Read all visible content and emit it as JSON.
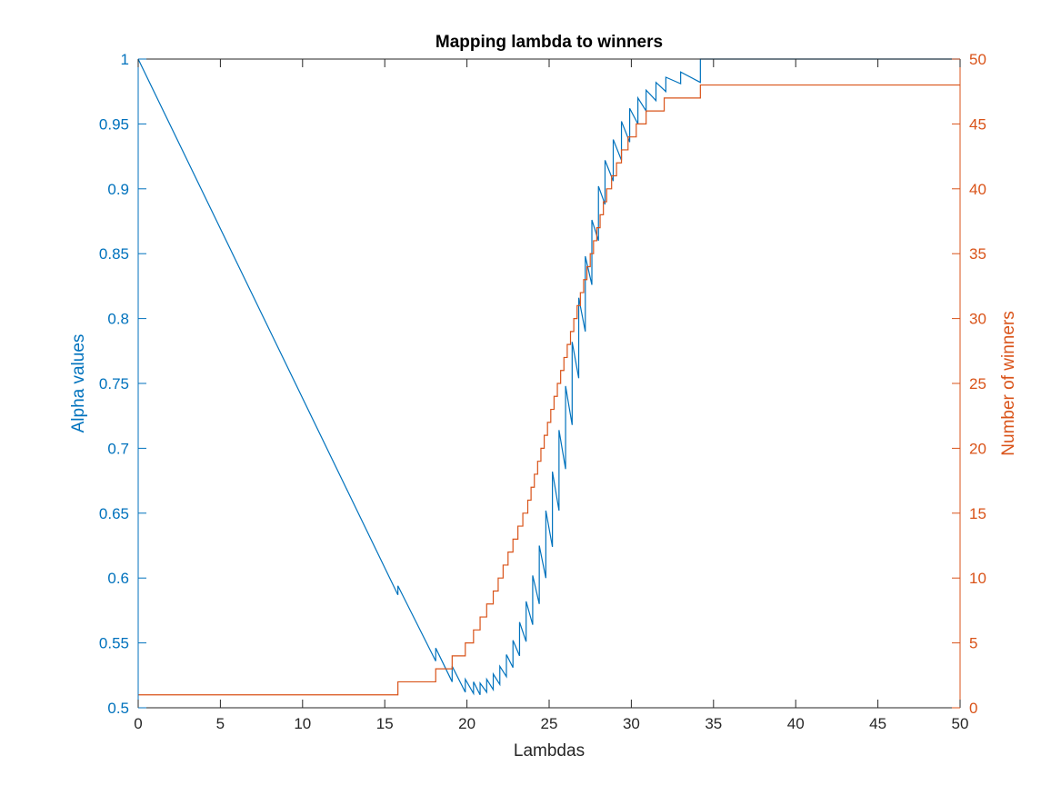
{
  "chart_data": {
    "type": "line",
    "title": "Mapping lambda to winners",
    "xlabel": "Lambdas",
    "ylabel_left": "Alpha values",
    "ylabel_right": "Number of winners",
    "xlim": [
      0,
      50
    ],
    "ylim_left": [
      0.5,
      1
    ],
    "ylim_right": [
      0,
      50
    ],
    "x_ticks": [
      "0",
      "5",
      "10",
      "15",
      "20",
      "25",
      "30",
      "35",
      "40",
      "45",
      "50"
    ],
    "y_left_ticks": [
      "0.5",
      "0.55",
      "0.6",
      "0.65",
      "0.7",
      "0.75",
      "0.8",
      "0.85",
      "0.9",
      "0.95",
      "1"
    ],
    "y_right_ticks": [
      "0",
      "5",
      "10",
      "15",
      "20",
      "25",
      "30",
      "35",
      "40",
      "45",
      "50"
    ],
    "grid": false,
    "colors": {
      "left": "#0072BD",
      "right": "#D95319",
      "axis": "#262626",
      "title": "#000000"
    },
    "series": [
      {
        "name": "Alpha values",
        "axis": "left",
        "color": "#0072BD",
        "x": [
          0,
          15.8,
          15.8,
          18.1,
          18.1,
          19.1,
          19.1,
          19.9,
          19.9,
          20.4,
          20.4,
          20.8,
          20.8,
          21.2,
          21.2,
          21.6,
          21.6,
          22.0,
          22.0,
          22.4,
          22.4,
          22.8,
          22.8,
          23.2,
          23.2,
          23.6,
          23.6,
          24.0,
          24.0,
          24.4,
          24.4,
          24.8,
          24.8,
          25.2,
          25.2,
          25.6,
          25.6,
          26.0,
          26.0,
          26.4,
          26.4,
          26.8,
          26.8,
          27.2,
          27.2,
          27.6,
          27.6,
          28.0,
          28.0,
          28.4,
          28.4,
          28.9,
          28.9,
          29.4,
          29.4,
          29.9,
          29.9,
          30.4,
          30.4,
          30.9,
          30.9,
          31.5,
          31.5,
          32.1,
          32.1,
          33.0,
          33.0,
          34.2,
          34.2,
          50
        ],
        "y": [
          1.0,
          0.587,
          0.594,
          0.536,
          0.546,
          0.52,
          0.532,
          0.512,
          0.522,
          0.511,
          0.52,
          0.51,
          0.519,
          0.512,
          0.522,
          0.514,
          0.526,
          0.518,
          0.532,
          0.524,
          0.541,
          0.531,
          0.552,
          0.54,
          0.566,
          0.551,
          0.582,
          0.564,
          0.602,
          0.58,
          0.625,
          0.6,
          0.652,
          0.624,
          0.682,
          0.652,
          0.714,
          0.684,
          0.748,
          0.718,
          0.782,
          0.754,
          0.816,
          0.79,
          0.848,
          0.826,
          0.876,
          0.86,
          0.902,
          0.888,
          0.922,
          0.906,
          0.938,
          0.922,
          0.952,
          0.936,
          0.962,
          0.95,
          0.97,
          0.96,
          0.976,
          0.968,
          0.982,
          0.975,
          0.986,
          0.981,
          0.99,
          0.982,
          1.0,
          1.0
        ]
      },
      {
        "name": "Number of winners",
        "axis": "right",
        "color": "#D95319",
        "x": [
          0,
          15.8,
          15.8,
          18.1,
          18.1,
          19.1,
          19.1,
          19.9,
          19.9,
          20.4,
          20.4,
          20.8,
          20.8,
          21.2,
          21.2,
          21.6,
          21.6,
          21.9,
          21.9,
          22.2,
          22.2,
          22.5,
          22.5,
          22.8,
          22.8,
          23.1,
          23.1,
          23.4,
          23.4,
          23.7,
          23.7,
          23.9,
          23.9,
          24.1,
          24.1,
          24.3,
          24.3,
          24.5,
          24.5,
          24.7,
          24.7,
          24.9,
          24.9,
          25.1,
          25.1,
          25.3,
          25.3,
          25.5,
          25.5,
          25.7,
          25.7,
          25.9,
          25.9,
          26.1,
          26.1,
          26.3,
          26.3,
          26.5,
          26.5,
          26.7,
          26.7,
          26.9,
          26.9,
          27.1,
          27.1,
          27.3,
          27.3,
          27.5,
          27.5,
          27.7,
          27.7,
          27.9,
          27.9,
          28.1,
          28.1,
          28.3,
          28.3,
          28.5,
          28.5,
          28.8,
          28.8,
          29.1,
          29.1,
          29.4,
          29.4,
          29.8,
          29.8,
          30.3,
          30.3,
          30.9,
          30.9,
          32.0,
          32.0,
          34.2,
          34.2,
          50
        ],
        "y": [
          1,
          1,
          2,
          2,
          3,
          3,
          4,
          4,
          5,
          5,
          6,
          6,
          7,
          7,
          8,
          8,
          9,
          9,
          10,
          10,
          11,
          11,
          12,
          12,
          13,
          13,
          14,
          14,
          15,
          15,
          16,
          16,
          17,
          17,
          18,
          18,
          19,
          19,
          20,
          20,
          21,
          21,
          22,
          22,
          23,
          23,
          24,
          24,
          25,
          25,
          26,
          26,
          27,
          27,
          28,
          28,
          29,
          29,
          30,
          30,
          31,
          31,
          32,
          32,
          33,
          33,
          34,
          34,
          35,
          35,
          36,
          36,
          37,
          37,
          38,
          38,
          39,
          39,
          40,
          40,
          41,
          41,
          42,
          42,
          43,
          43,
          44,
          44,
          45,
          45,
          46,
          46,
          47,
          47,
          48,
          48
        ]
      }
    ]
  }
}
